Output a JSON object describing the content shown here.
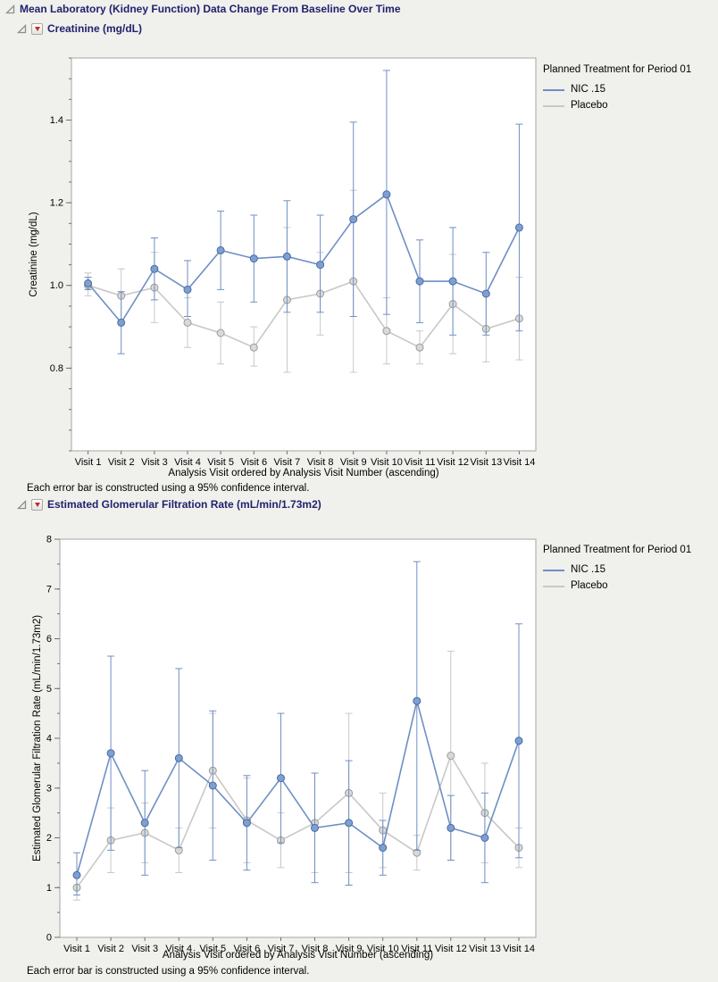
{
  "report": {
    "main_title": "Mean Laboratory (Kidney Function) Data Change From Baseline Over Time",
    "sections": [
      {
        "title": "Creatinine (mg/dL)"
      },
      {
        "title": "Estimated Glomerular Filtration Rate (mL/min/1.73m2)"
      }
    ]
  },
  "chart_data": [
    {
      "type": "line",
      "title": "Creatinine (mg/dL)",
      "xlabel": "Analysis Visit ordered by Analysis Visit Number (ascending)",
      "ylabel": "Creatinine (mg/dL)",
      "footnote": "Each error bar is constructed using a 95% confidence interval.",
      "legend_title": "Planned Treatment for Period 01",
      "legend_position": "right",
      "grid": false,
      "error_bars": "95% confidence interval",
      "categories": [
        "Visit 1",
        "Visit 2",
        "Visit 3",
        "Visit 4",
        "Visit 5",
        "Visit 6",
        "Visit 7",
        "Visit 8",
        "Visit 9",
        "Visit 10",
        "Visit 11",
        "Visit 12",
        "Visit 13",
        "Visit 14"
      ],
      "ylim": [
        0.6,
        1.55
      ],
      "yticks": [
        0.8,
        1.0,
        1.2,
        1.4
      ],
      "ytick_labels": [
        "0.8",
        "1.0",
        "1.2",
        "1.4"
      ],
      "yminor": 0.05,
      "series": [
        {
          "name": "NIC .15",
          "color": "#6e8fc5",
          "marker_fill": "#7da0d2",
          "marker_stroke": "#4c6a9f",
          "values": [
            1.005,
            0.91,
            1.04,
            0.99,
            1.085,
            1.065,
            1.07,
            1.05,
            1.16,
            1.22,
            1.01,
            1.01,
            0.98,
            1.14
          ],
          "ci_lower": [
            0.99,
            0.835,
            0.965,
            0.925,
            0.99,
            0.96,
            0.935,
            0.935,
            0.925,
            0.93,
            0.91,
            0.88,
            0.88,
            0.89
          ],
          "ci_upper": [
            1.02,
            0.985,
            1.115,
            1.06,
            1.18,
            1.17,
            1.205,
            1.17,
            1.395,
            1.52,
            1.11,
            1.14,
            1.08,
            1.39
          ]
        },
        {
          "name": "Placebo",
          "color": "#c8c8c6",
          "marker_fill": "#d9d9d7",
          "marker_stroke": "#9c9c9a",
          "values": [
            1.0,
            0.975,
            0.995,
            0.91,
            0.885,
            0.85,
            0.965,
            0.98,
            1.01,
            0.89,
            0.85,
            0.955,
            0.895,
            0.92
          ],
          "ci_lower": [
            0.975,
            0.91,
            0.91,
            0.85,
            0.81,
            0.805,
            0.79,
            0.88,
            0.79,
            0.81,
            0.81,
            0.835,
            0.815,
            0.82
          ],
          "ci_upper": [
            1.03,
            1.04,
            1.08,
            0.97,
            0.96,
            0.9,
            1.14,
            1.08,
            1.23,
            0.97,
            0.89,
            1.075,
            0.975,
            1.02
          ]
        }
      ]
    },
    {
      "type": "line",
      "title": "Estimated Glomerular Filtration Rate (mL/min/1.73m2)",
      "xlabel": "Analysis Visit ordered by Analysis Visit Number (ascending)",
      "ylabel": "Estimated Glomerular Filtration Rate (mL/min/1.73m2)",
      "footnote": "Each error bar is constructed using a 95% confidence interval.",
      "legend_title": "Planned Treatment for Period 01",
      "legend_position": "right",
      "grid": false,
      "error_bars": "95% confidence interval",
      "categories": [
        "Visit 1",
        "Visit 2",
        "Visit 3",
        "Visit 4",
        "Visit 5",
        "Visit 6",
        "Visit 7",
        "Visit 8",
        "Visit 9",
        "Visit 10",
        "Visit 11",
        "Visit 12",
        "Visit 13",
        "Visit 14"
      ],
      "ylim": [
        0,
        8
      ],
      "yticks": [
        0,
        1,
        2,
        3,
        4,
        5,
        6,
        7,
        8
      ],
      "ytick_labels": [
        "0",
        "1",
        "2",
        "3",
        "4",
        "5",
        "6",
        "7",
        "8"
      ],
      "yminor": 0.5,
      "series": [
        {
          "name": "NIC .15",
          "color": "#6e8fc5",
          "marker_fill": "#7da0d2",
          "marker_stroke": "#4c6a9f",
          "values": [
            1.25,
            3.7,
            2.3,
            3.6,
            3.05,
            2.3,
            3.2,
            2.2,
            2.3,
            1.8,
            4.75,
            2.2,
            2.0,
            3.95
          ],
          "ci_lower": [
            0.85,
            1.75,
            1.25,
            1.8,
            1.55,
            1.35,
            1.9,
            1.1,
            1.05,
            1.25,
            1.75,
            1.55,
            1.1,
            1.6
          ],
          "ci_upper": [
            1.7,
            5.65,
            3.35,
            5.4,
            4.55,
            3.25,
            4.5,
            3.3,
            3.55,
            2.35,
            7.55,
            2.85,
            2.9,
            6.3
          ]
        },
        {
          "name": "Placebo",
          "color": "#c8c8c6",
          "marker_fill": "#d9d9d7",
          "marker_stroke": "#9c9c9a",
          "values": [
            1.0,
            1.95,
            2.1,
            1.75,
            3.35,
            2.35,
            1.95,
            2.3,
            2.9,
            2.15,
            1.7,
            3.65,
            2.5,
            1.8
          ],
          "ci_lower": [
            0.75,
            1.3,
            1.5,
            1.3,
            2.2,
            1.5,
            1.4,
            1.3,
            1.3,
            1.4,
            1.35,
            1.55,
            1.5,
            1.4
          ],
          "ci_upper": [
            1.25,
            2.6,
            2.7,
            2.2,
            4.5,
            3.2,
            2.5,
            3.3,
            4.5,
            2.9,
            2.05,
            5.75,
            3.5,
            2.2
          ]
        }
      ]
    }
  ]
}
